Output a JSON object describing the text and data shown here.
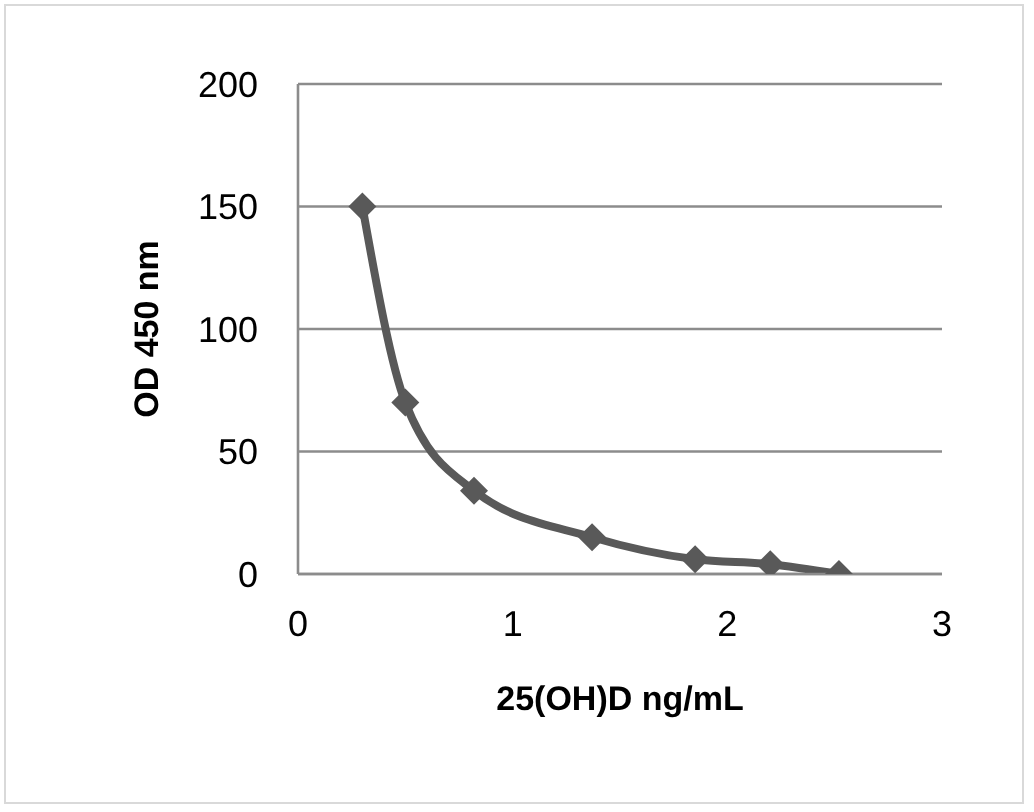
{
  "chart_data": {
    "type": "line",
    "xlabel": "25(OH)D ng/mL",
    "ylabel": "OD 450 nm",
    "x": [
      0.3,
      0.5,
      0.82,
      1.37,
      1.85,
      2.2,
      2.52
    ],
    "series": [
      {
        "color": "#595959",
        "values": [
          150,
          70,
          34,
          15,
          6,
          4,
          0
        ]
      }
    ],
    "xlim": [
      0,
      3
    ],
    "xticks": [
      0,
      1,
      2,
      3
    ],
    "ylim": [
      0,
      200
    ],
    "yticks": [
      0,
      50,
      100,
      150,
      200
    ],
    "grid": "y",
    "legend": false,
    "marker": "diamond",
    "line_style": "solid"
  }
}
